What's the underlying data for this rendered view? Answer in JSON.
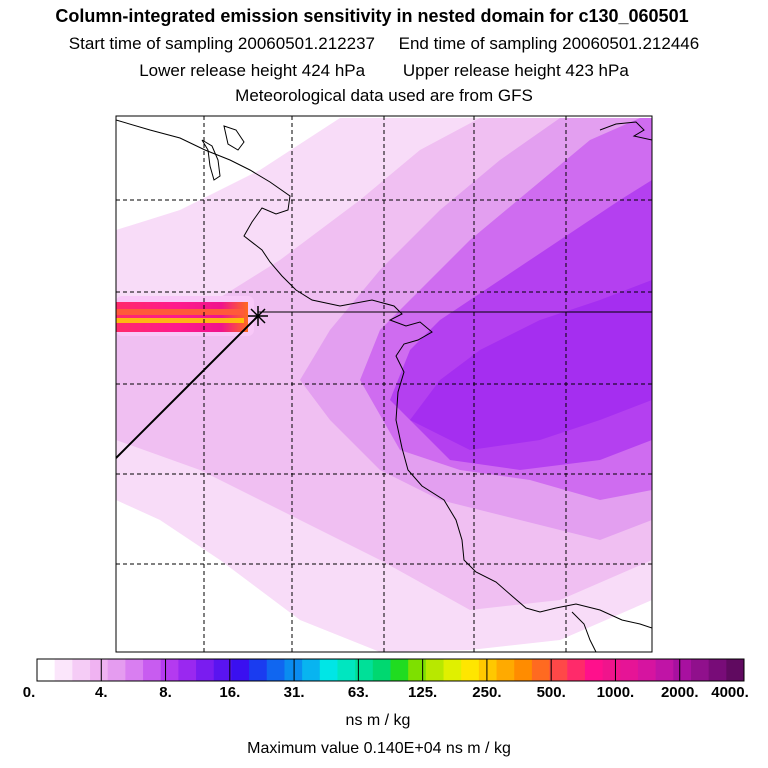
{
  "chart_data": {
    "type": "heatmap",
    "title": "Column-integrated emission sensitivity in nested domain for c130_060501",
    "start_label": "Start time of sampling 20060501.212237",
    "end_label": "End time of sampling 20060501.212446",
    "lower_label": "Lower release height  424 hPa",
    "upper_label": "Upper release height  423 hPa",
    "met_label": "Meteorological data used are from GFS",
    "colorbar": {
      "ticks": [
        "0.",
        "4.",
        "8.",
        "16.",
        "31.",
        "63.",
        "125.",
        "250.",
        "500.",
        "1000.",
        "2000.",
        "4000."
      ],
      "tick_values": [
        0,
        4,
        8,
        16,
        31,
        63,
        125,
        250,
        500,
        1000,
        2000,
        4000
      ],
      "colors": [
        "#ffffff",
        "#fbe6fb",
        "#f5ccf6",
        "#f0b3f2",
        "#e59cf0",
        "#d97ef1",
        "#c85cf0",
        "#b43af0",
        "#9a28f0",
        "#7a1cf0",
        "#5a14f0",
        "#3a10f0",
        "#1a3cf0",
        "#1066f0",
        "#0a8cf0",
        "#08b4f0",
        "#00e6e6",
        "#00e6c0",
        "#00e098",
        "#00d870",
        "#20dc20",
        "#7ee000",
        "#b8e800",
        "#e0f000",
        "#ffe600",
        "#ffc800",
        "#ffaa00",
        "#ff8c00",
        "#ff6a20",
        "#ff4848",
        "#ff2a6a",
        "#ff108c",
        "#f0148c",
        "#e61496",
        "#d614a0",
        "#c014a6",
        "#a810a0",
        "#90108c",
        "#780c78",
        "#600a60"
      ],
      "units": "ns m / kg"
    },
    "max_value_label": "Maximum value  0.140E+04 ns m / kg",
    "max_value": 1400
  }
}
